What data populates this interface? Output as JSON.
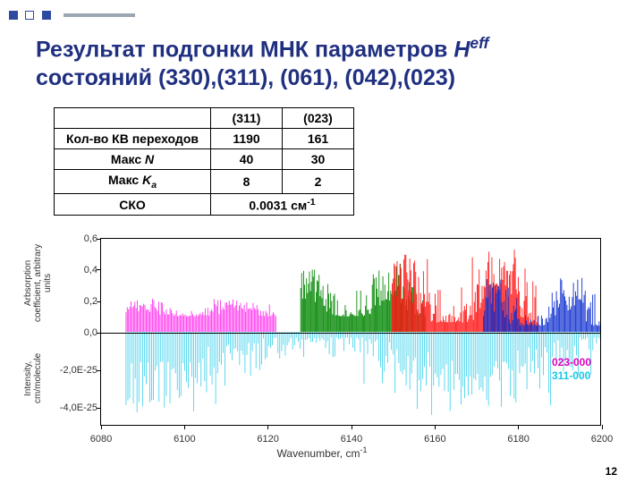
{
  "decor": {
    "fill1": "#2e4a9e",
    "fill2": "#ffffff",
    "stroke": "#2e4a9e",
    "bar": "#9aa6b2"
  },
  "title_line1": "Результат подгонки МНК параметров ",
  "title_H": "H",
  "title_eff": "eff",
  "title_line2": "состояний (330),(311), (061), (042),(023)",
  "title_color": "#203080",
  "table": {
    "col1": "(311)",
    "col2": "(023)",
    "rows": [
      {
        "h": "Кол-во КВ переходов",
        "a": "1190",
        "b": "161"
      },
      {
        "h_prefix": "Макс ",
        "h_ital": "N",
        "a": "40",
        "b": "30"
      },
      {
        "h_prefix": "Макс ",
        "h_ital": "K",
        "h_sub": "a",
        "a": "8",
        "b": "2"
      },
      {
        "h": "СКО",
        "merged_prefix": "0.0031 см",
        "merged_sup": "-1"
      }
    ]
  },
  "chart": {
    "x_axis_label": "Wavenumber, cm",
    "x_axis_sup": "-1",
    "y_axis_label_top": "Arbsorption coefficient, arbitrary units",
    "y_axis_label_bot": "Intensity, cm/molecule",
    "xlim": [
      6080,
      6200
    ],
    "xticks": [
      6080,
      6100,
      6120,
      6140,
      6160,
      6180,
      6200
    ],
    "yticks_top": [
      {
        "v": "0,0",
        "frac": 1.0
      },
      {
        "v": "0,2",
        "frac": 0.667
      },
      {
        "v": "0,4",
        "frac": 0.333
      },
      {
        "v": "0,6",
        "frac": 0.0
      }
    ],
    "yticks_bot": [
      {
        "v": "-2,0E-25",
        "frac": 0.4
      },
      {
        "v": "-4,0E-25",
        "frac": 0.8
      }
    ],
    "top_ymax": 0.6,
    "bot_ymax": 5e-25,
    "background": "#ffffff",
    "axis_color": "#000000",
    "series_top": [
      {
        "color": "#ff33ee",
        "x0": 6086,
        "x1": 6122,
        "base": 0.1,
        "peak": 0.22,
        "density": 120
      },
      {
        "color": "#0a8a0a",
        "x0": 6128,
        "x1": 6158,
        "base": 0.1,
        "peak": 0.46,
        "density": 130
      },
      {
        "color": "#ff1a1a",
        "x0": 6150,
        "x1": 6185,
        "base": 0.06,
        "peak": 0.55,
        "density": 150
      },
      {
        "color": "#1030d0",
        "x0": 6172,
        "x1": 6200,
        "base": 0.04,
        "peak": 0.36,
        "density": 110
      }
    ],
    "series_bot": [
      {
        "color": "#18c8e8",
        "x0": 6086,
        "x1": 6200,
        "base": 3e-26,
        "peak": 4.5e-25,
        "density": 260
      }
    ],
    "legend": [
      {
        "label": "023-000",
        "color": "#e000c0"
      },
      {
        "label": "311-000",
        "color": "#18c8e8"
      }
    ]
  },
  "page_number": "12"
}
